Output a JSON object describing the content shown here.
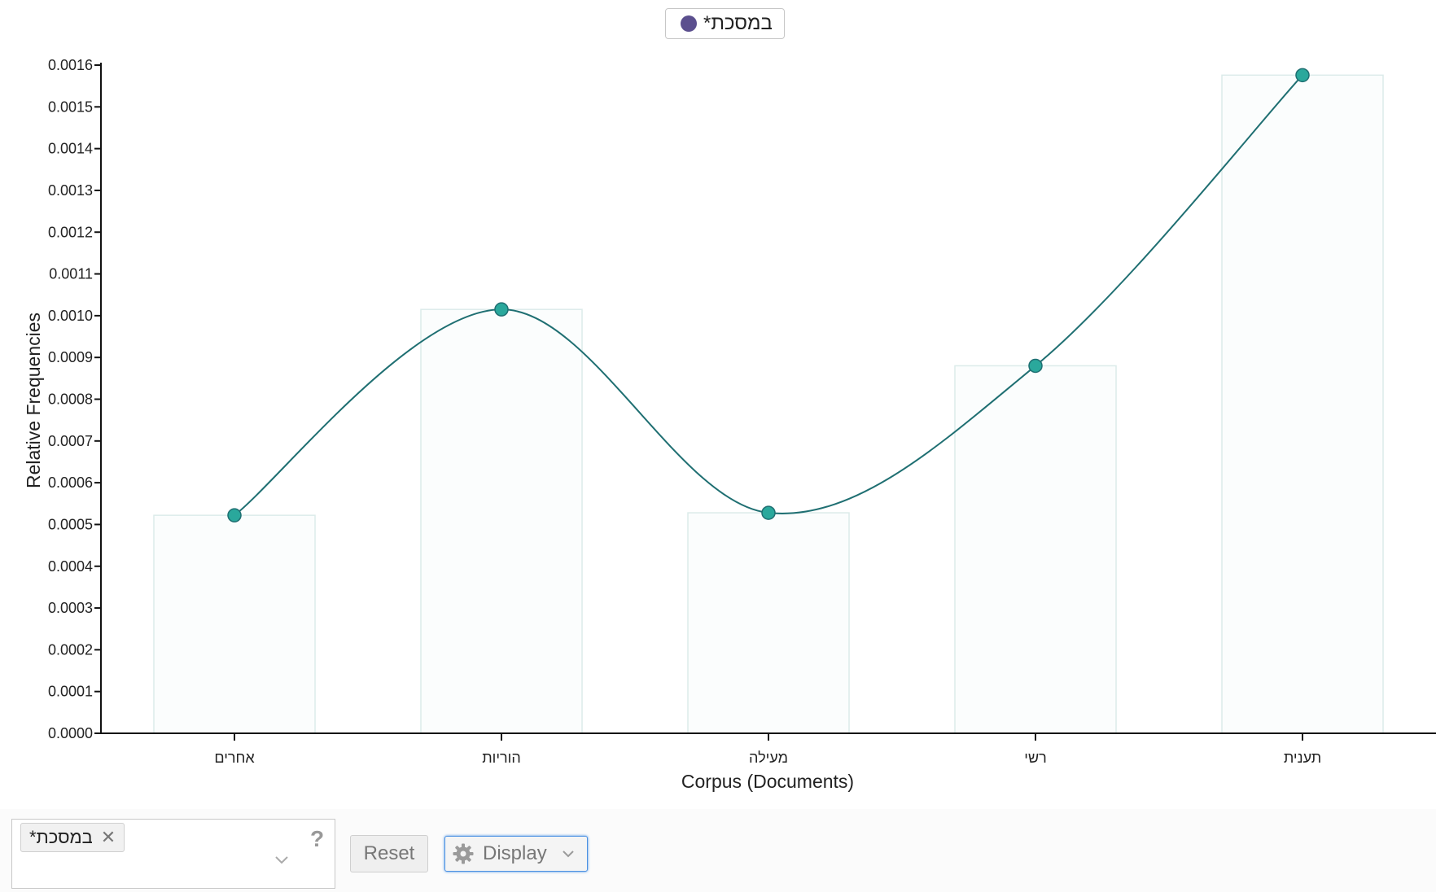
{
  "legend": {
    "term": "במסכת*",
    "color": "#5b4f8e"
  },
  "chart_data": {
    "type": "bar+line",
    "title": "",
    "xlabel": "Corpus (Documents)",
    "ylabel": "Relative Frequencies",
    "ylim": [
      0,
      0.0016
    ],
    "yticks": [
      "0.0000",
      "0.0001",
      "0.0002",
      "0.0003",
      "0.0004",
      "0.0005",
      "0.0006",
      "0.0007",
      "0.0008",
      "0.0009",
      "0.0010",
      "0.0011",
      "0.0012",
      "0.0013",
      "0.0014",
      "0.0015",
      "0.0016"
    ],
    "categories": [
      "אחרים",
      "הוריות",
      "מעילה",
      "רשי",
      "תענית"
    ],
    "series": [
      {
        "name": "במסכת*",
        "values": [
          0.000522,
          0.001015,
          0.000528,
          0.00088,
          0.001576
        ]
      }
    ],
    "colors": {
      "line": "#1f6f72",
      "point_fill": "#2aa89c",
      "point_stroke": "#1f6f72",
      "bar_fill": "#fbfdfd",
      "bar_stroke": "#dcebea"
    }
  },
  "controls": {
    "term_chip": "במסכת*",
    "term_remove_icon": "close-icon",
    "help_label": "?",
    "reset_label": "Reset",
    "display_label": "Display",
    "display_icon": "gear-icon"
  }
}
